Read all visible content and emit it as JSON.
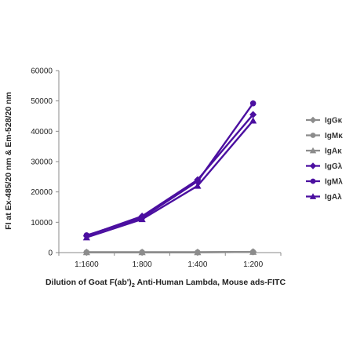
{
  "chart_data": {
    "type": "line",
    "title": "",
    "xlabel_parts": [
      "Dilution of Goat F(ab')",
      "2",
      " Anti-Human Lambda, Mouse ads-FITC"
    ],
    "ylabel": "FI at Ex-485/20 nm & Em-528/20 nm",
    "categories": [
      "1:1600",
      "1:800",
      "1:400",
      "1:200"
    ],
    "ylim": [
      0,
      60000
    ],
    "yticks": [
      0,
      10000,
      20000,
      30000,
      40000,
      50000,
      60000
    ],
    "grid": false,
    "legend_position": "right",
    "series": [
      {
        "name": "IgGκ",
        "marker": "diamond",
        "color": "#8c8c8c",
        "values": [
          100,
          100,
          100,
          250
        ]
      },
      {
        "name": "IgMκ",
        "marker": "circle",
        "color": "#8c8c8c",
        "values": [
          100,
          100,
          100,
          200
        ]
      },
      {
        "name": "IgAκ",
        "marker": "triangle",
        "color": "#8c8c8c",
        "values": [
          100,
          100,
          100,
          200
        ]
      },
      {
        "name": "IgGλ",
        "marker": "diamond",
        "color": "#4b0fa0",
        "values": [
          5500,
          12000,
          24000,
          45500
        ]
      },
      {
        "name": "IgMλ",
        "marker": "circle",
        "color": "#4b0fa0",
        "values": [
          5700,
          11500,
          23500,
          49200
        ]
      },
      {
        "name": "IgAλ",
        "marker": "triangle",
        "color": "#4b0fa0",
        "values": [
          5000,
          11000,
          22000,
          43500
        ]
      }
    ]
  }
}
